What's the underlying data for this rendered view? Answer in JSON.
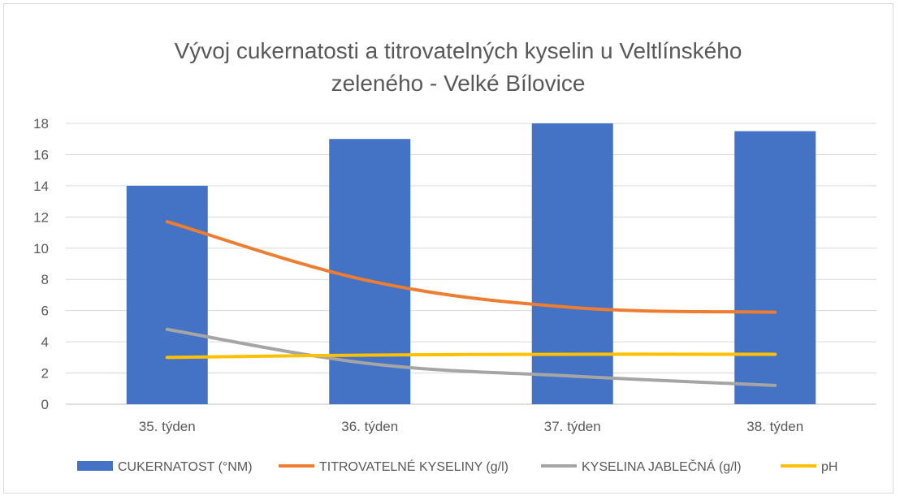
{
  "chart_data": {
    "type": "bar",
    "title_lines": [
      "Vývoj cukernatosti a titrovatelných kyselin u Veltlínského",
      "zeleného - Velké Bílovice"
    ],
    "categories": [
      "35. týden",
      "36. týden",
      "37. týden",
      "38. týden"
    ],
    "ylim": [
      0,
      18
    ],
    "yticks": [
      0,
      2,
      4,
      6,
      8,
      10,
      12,
      14,
      16,
      18
    ],
    "grid": true,
    "legend_position": "bottom",
    "series": [
      {
        "name": "CUKERNATOST (°NM)",
        "type": "bar",
        "color": "#4472C4",
        "values": [
          14,
          17,
          18,
          17.5
        ]
      },
      {
        "name": "TITROVATELNÉ KYSELINY (g/l)",
        "type": "line",
        "color": "#ED7D31",
        "values": [
          11.7,
          7.9,
          6.2,
          5.9
        ]
      },
      {
        "name": "KYSELINA JABLEČNÁ (g/l)",
        "type": "line",
        "color": "#A5A5A5",
        "values": [
          4.8,
          2.6,
          1.8,
          1.2
        ]
      },
      {
        "name": "pH",
        "type": "line",
        "color": "#FFC000",
        "values": [
          3.0,
          3.15,
          3.2,
          3.2
        ]
      }
    ]
  }
}
